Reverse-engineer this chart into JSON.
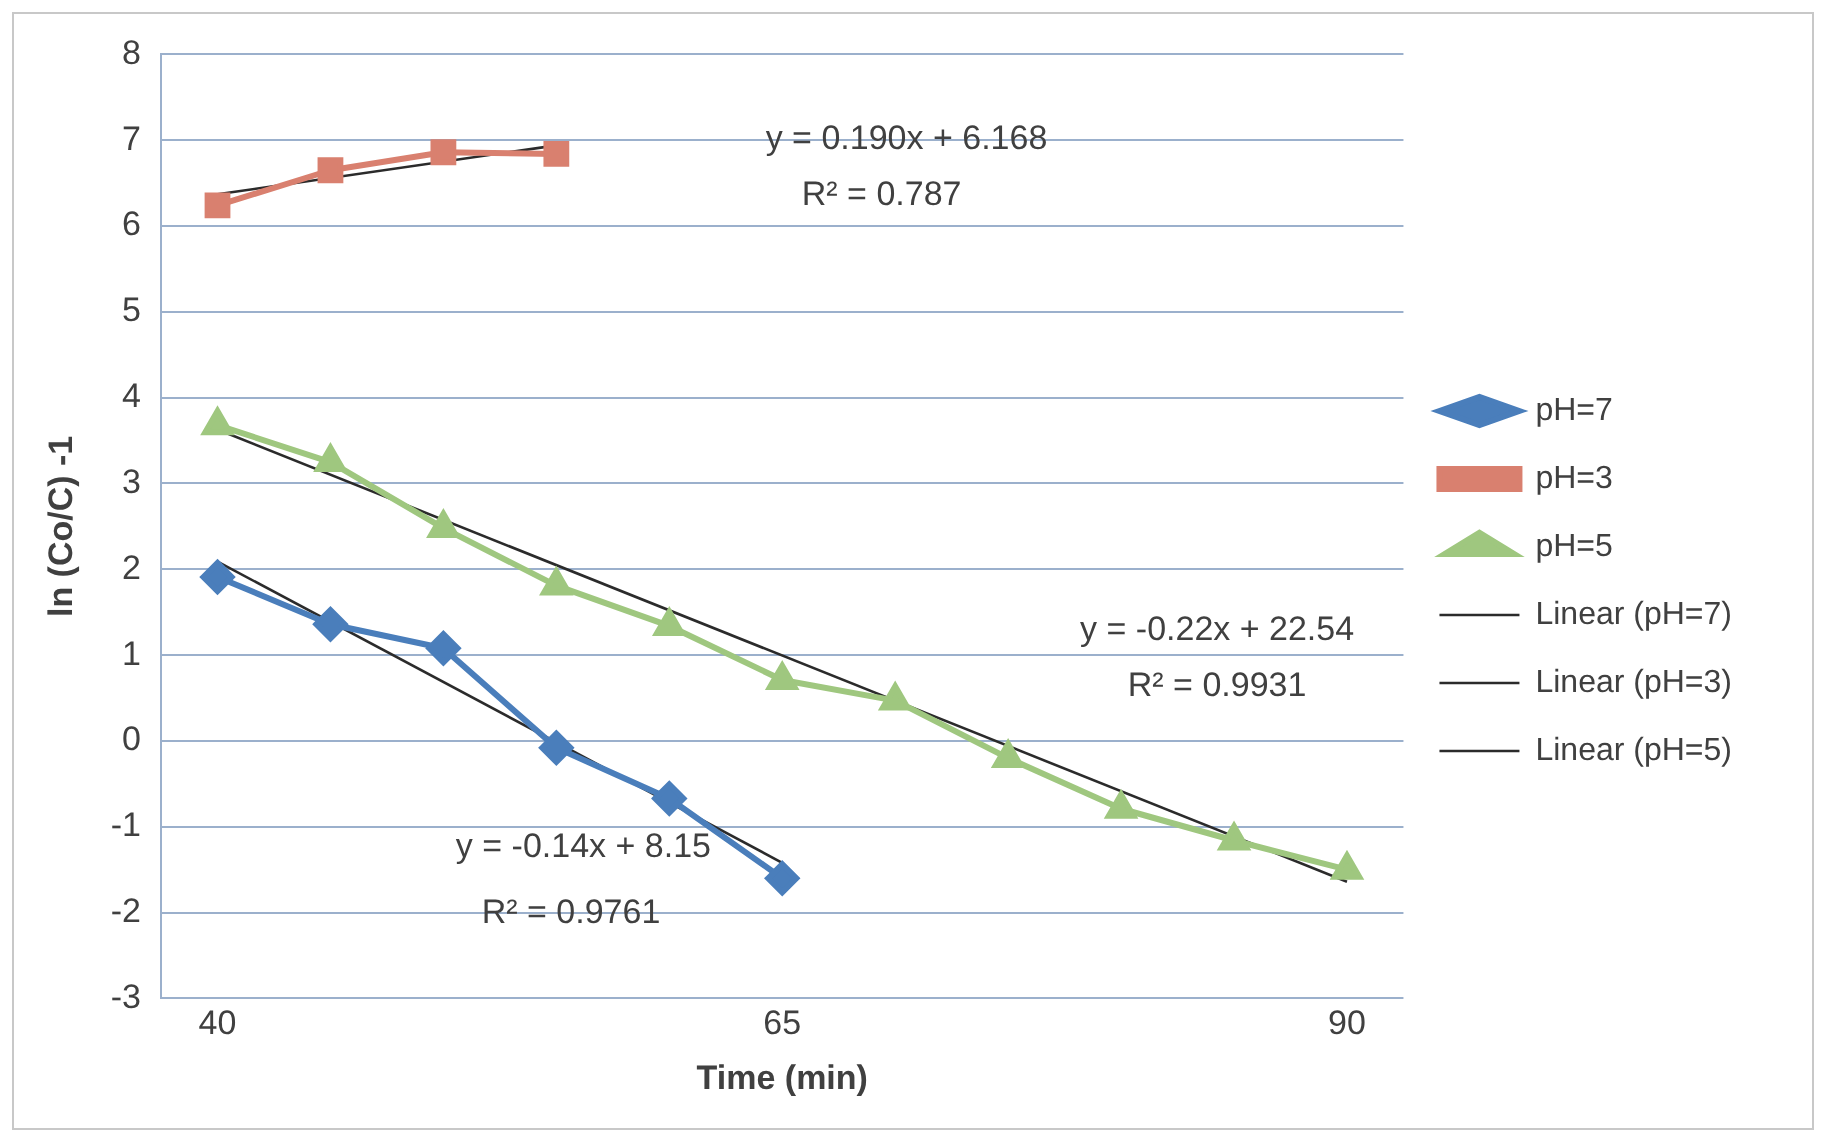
{
  "chart_data": {
    "type": "line",
    "xlabel": "Time (min)",
    "ylabel": "ln (Co/C) -1",
    "xlim": [
      37.5,
      92.5
    ],
    "xticks": [
      40,
      65,
      90
    ],
    "ylim": [
      -3,
      8
    ],
    "yticks": [
      -3,
      -2,
      -1,
      0,
      1,
      2,
      3,
      4,
      5,
      6,
      7,
      8
    ],
    "grid": "y",
    "legend": "right",
    "line_style": "solid",
    "series": [
      {
        "name": "pH=7",
        "color": "#4a7ebb",
        "marker": "diamond",
        "x": [
          40,
          45,
          50,
          55,
          60,
          65
        ],
        "values": [
          1.91,
          1.36,
          1.08,
          -0.08,
          -0.67,
          -1.6
        ]
      },
      {
        "name": "pH=3",
        "color": "#d9806f",
        "marker": "square",
        "x": [
          40,
          45,
          50,
          55
        ],
        "values": [
          6.24,
          6.65,
          6.86,
          6.84
        ]
      },
      {
        "name": "pH=5",
        "color": "#9fc77f",
        "marker": "triangle",
        "x": [
          40,
          45,
          50,
          55,
          60,
          65,
          70,
          75,
          80,
          85,
          90
        ],
        "values": [
          3.68,
          3.25,
          2.48,
          1.81,
          1.34,
          0.71,
          0.47,
          -0.2,
          -0.79,
          -1.16,
          -1.5
        ]
      },
      {
        "name": "Linear (pH=7)",
        "color": "#2b2b2b",
        "marker": "none",
        "x": [
          40,
          65
        ],
        "values": [
          2.09,
          -1.42
        ]
      },
      {
        "name": "Linear (pH=3)",
        "color": "#2b2b2b",
        "marker": "none",
        "x": [
          40,
          55
        ],
        "values": [
          6.37,
          6.94
        ]
      },
      {
        "name": "Linear (pH=5)",
        "color": "#2b2b2b",
        "marker": "none",
        "x": [
          40,
          90
        ],
        "values": [
          3.63,
          -1.64
        ]
      }
    ],
    "annotations": [
      "y = 0.190x + 6.168",
      "R² = 0.787",
      "y = -0.14x + 8.15",
      "R² = 0.9761",
      "y = -0.22x + 22.54",
      "R² = 0.9931"
    ]
  }
}
